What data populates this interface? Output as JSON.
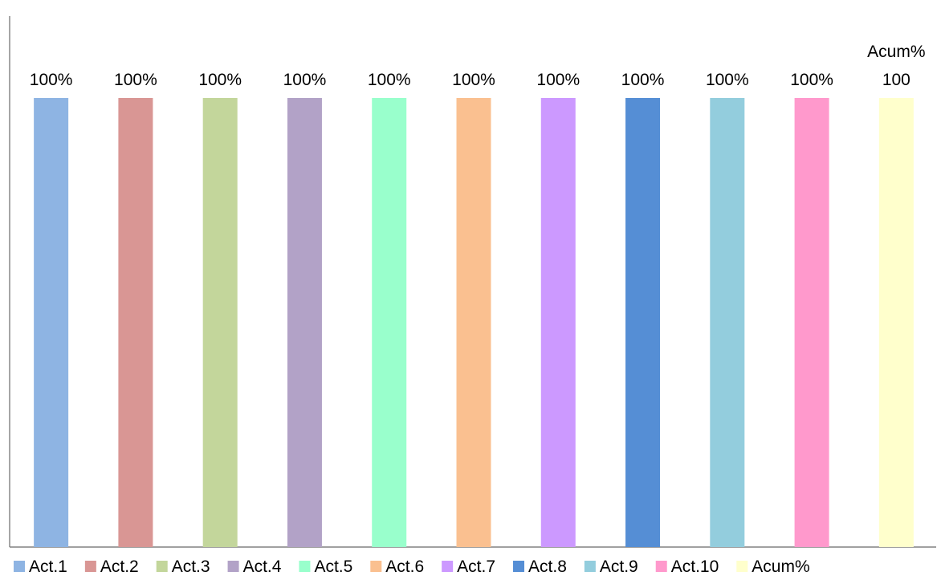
{
  "chart_data": {
    "type": "bar",
    "title": "",
    "xlabel": "",
    "ylabel": "",
    "ylim": [
      0,
      100
    ],
    "grid": false,
    "legend_position": "bottom",
    "series": [
      {
        "name": "Act.1",
        "value": 100,
        "label": "100%",
        "color": "#8EB4E3"
      },
      {
        "name": "Act.2",
        "value": 100,
        "label": "100%",
        "color": "#D99694"
      },
      {
        "name": "Act.3",
        "value": 100,
        "label": "100%",
        "color": "#C3D69B"
      },
      {
        "name": "Act.4",
        "value": 100,
        "label": "100%",
        "color": "#B2A2C7"
      },
      {
        "name": "Act.5",
        "value": 100,
        "label": "100%",
        "color": "#99FFCC"
      },
      {
        "name": "Act.6",
        "value": 100,
        "label": "100%",
        "color": "#FAC090"
      },
      {
        "name": "Act.7",
        "value": 100,
        "label": "100%",
        "color": "#CC99FF"
      },
      {
        "name": "Act.8",
        "value": 100,
        "label": "100%",
        "color": "#558ED5"
      },
      {
        "name": "Act.9",
        "value": 100,
        "label": "100%",
        "color": "#93CDDD"
      },
      {
        "name": "Act.10",
        "value": 100,
        "label": "100%",
        "color": "#FF99CC"
      },
      {
        "name": "Acum%",
        "value": 100,
        "label": "100",
        "label_prefix": "Acum%",
        "color": "#FFFFCC"
      }
    ]
  }
}
